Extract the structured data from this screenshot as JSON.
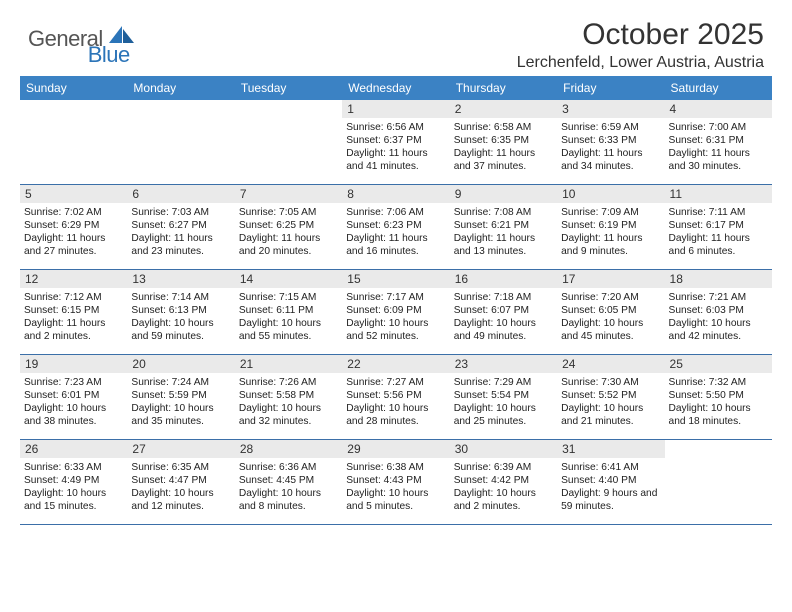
{
  "brand": {
    "text_general": "General",
    "text_blue": "Blue",
    "primary_color": "#2b74b8",
    "header_bg": "#3b82c4",
    "divider_color": "#3b6fa8",
    "daynum_bg": "#eaeaea"
  },
  "title": "October 2025",
  "location": "Lerchenfeld, Lower Austria, Austria",
  "day_names": [
    "Sunday",
    "Monday",
    "Tuesday",
    "Wednesday",
    "Thursday",
    "Friday",
    "Saturday"
  ],
  "weeks": [
    [
      {
        "n": "",
        "sr": "",
        "ss": "",
        "dl": ""
      },
      {
        "n": "",
        "sr": "",
        "ss": "",
        "dl": ""
      },
      {
        "n": "",
        "sr": "",
        "ss": "",
        "dl": ""
      },
      {
        "n": "1",
        "sr": "6:56 AM",
        "ss": "6:37 PM",
        "dl": "11 hours and 41 minutes."
      },
      {
        "n": "2",
        "sr": "6:58 AM",
        "ss": "6:35 PM",
        "dl": "11 hours and 37 minutes."
      },
      {
        "n": "3",
        "sr": "6:59 AM",
        "ss": "6:33 PM",
        "dl": "11 hours and 34 minutes."
      },
      {
        "n": "4",
        "sr": "7:00 AM",
        "ss": "6:31 PM",
        "dl": "11 hours and 30 minutes."
      }
    ],
    [
      {
        "n": "5",
        "sr": "7:02 AM",
        "ss": "6:29 PM",
        "dl": "11 hours and 27 minutes."
      },
      {
        "n": "6",
        "sr": "7:03 AM",
        "ss": "6:27 PM",
        "dl": "11 hours and 23 minutes."
      },
      {
        "n": "7",
        "sr": "7:05 AM",
        "ss": "6:25 PM",
        "dl": "11 hours and 20 minutes."
      },
      {
        "n": "8",
        "sr": "7:06 AM",
        "ss": "6:23 PM",
        "dl": "11 hours and 16 minutes."
      },
      {
        "n": "9",
        "sr": "7:08 AM",
        "ss": "6:21 PM",
        "dl": "11 hours and 13 minutes."
      },
      {
        "n": "10",
        "sr": "7:09 AM",
        "ss": "6:19 PM",
        "dl": "11 hours and 9 minutes."
      },
      {
        "n": "11",
        "sr": "7:11 AM",
        "ss": "6:17 PM",
        "dl": "11 hours and 6 minutes."
      }
    ],
    [
      {
        "n": "12",
        "sr": "7:12 AM",
        "ss": "6:15 PM",
        "dl": "11 hours and 2 minutes."
      },
      {
        "n": "13",
        "sr": "7:14 AM",
        "ss": "6:13 PM",
        "dl": "10 hours and 59 minutes."
      },
      {
        "n": "14",
        "sr": "7:15 AM",
        "ss": "6:11 PM",
        "dl": "10 hours and 55 minutes."
      },
      {
        "n": "15",
        "sr": "7:17 AM",
        "ss": "6:09 PM",
        "dl": "10 hours and 52 minutes."
      },
      {
        "n": "16",
        "sr": "7:18 AM",
        "ss": "6:07 PM",
        "dl": "10 hours and 49 minutes."
      },
      {
        "n": "17",
        "sr": "7:20 AM",
        "ss": "6:05 PM",
        "dl": "10 hours and 45 minutes."
      },
      {
        "n": "18",
        "sr": "7:21 AM",
        "ss": "6:03 PM",
        "dl": "10 hours and 42 minutes."
      }
    ],
    [
      {
        "n": "19",
        "sr": "7:23 AM",
        "ss": "6:01 PM",
        "dl": "10 hours and 38 minutes."
      },
      {
        "n": "20",
        "sr": "7:24 AM",
        "ss": "5:59 PM",
        "dl": "10 hours and 35 minutes."
      },
      {
        "n": "21",
        "sr": "7:26 AM",
        "ss": "5:58 PM",
        "dl": "10 hours and 32 minutes."
      },
      {
        "n": "22",
        "sr": "7:27 AM",
        "ss": "5:56 PM",
        "dl": "10 hours and 28 minutes."
      },
      {
        "n": "23",
        "sr": "7:29 AM",
        "ss": "5:54 PM",
        "dl": "10 hours and 25 minutes."
      },
      {
        "n": "24",
        "sr": "7:30 AM",
        "ss": "5:52 PM",
        "dl": "10 hours and 21 minutes."
      },
      {
        "n": "25",
        "sr": "7:32 AM",
        "ss": "5:50 PM",
        "dl": "10 hours and 18 minutes."
      }
    ],
    [
      {
        "n": "26",
        "sr": "6:33 AM",
        "ss": "4:49 PM",
        "dl": "10 hours and 15 minutes."
      },
      {
        "n": "27",
        "sr": "6:35 AM",
        "ss": "4:47 PM",
        "dl": "10 hours and 12 minutes."
      },
      {
        "n": "28",
        "sr": "6:36 AM",
        "ss": "4:45 PM",
        "dl": "10 hours and 8 minutes."
      },
      {
        "n": "29",
        "sr": "6:38 AM",
        "ss": "4:43 PM",
        "dl": "10 hours and 5 minutes."
      },
      {
        "n": "30",
        "sr": "6:39 AM",
        "ss": "4:42 PM",
        "dl": "10 hours and 2 minutes."
      },
      {
        "n": "31",
        "sr": "6:41 AM",
        "ss": "4:40 PM",
        "dl": "9 hours and 59 minutes."
      },
      {
        "n": "",
        "sr": "",
        "ss": "",
        "dl": ""
      }
    ]
  ],
  "labels": {
    "sunrise": "Sunrise: ",
    "sunset": "Sunset: ",
    "daylight": "Daylight: "
  }
}
